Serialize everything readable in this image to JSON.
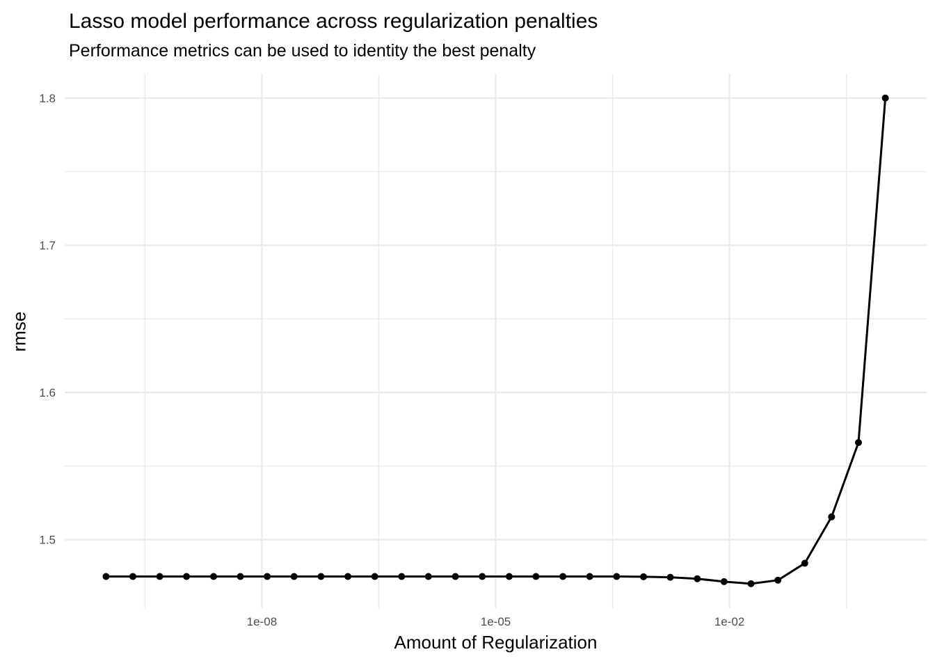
{
  "chart_data": {
    "type": "line",
    "title": "Lasso model performance across regularization penalties",
    "subtitle": "Performance metrics can be used to identity the best penalty",
    "xlabel": "Amount of Regularization",
    "ylabel": "rmse",
    "x_scale": "log10",
    "x": [
      1e-10,
      2.21e-10,
      4.89e-10,
      1.08e-09,
      2.4e-09,
      5.3e-09,
      1.17e-08,
      2.59e-08,
      5.74e-08,
      1.27e-07,
      2.81e-07,
      6.21e-07,
      1.37e-06,
      3.04e-06,
      6.72e-06,
      1.49e-05,
      3.29e-05,
      7.28e-05,
      0.000161,
      0.000356,
      0.000788,
      0.00174,
      0.00386,
      0.00853,
      0.0189,
      0.0418,
      0.0924,
      0.204,
      0.452,
      1.0
    ],
    "series": [
      {
        "name": "rmse",
        "color": "#000000",
        "values": [
          1.475,
          1.475,
          1.475,
          1.475,
          1.475,
          1.475,
          1.475,
          1.475,
          1.475,
          1.475,
          1.475,
          1.475,
          1.475,
          1.475,
          1.475,
          1.475,
          1.475,
          1.475,
          1.475,
          1.475,
          1.4748,
          1.4745,
          1.4735,
          1.4715,
          1.4701,
          1.4725,
          1.484,
          1.5155,
          1.566,
          1.8
        ]
      }
    ],
    "axes": {
      "x_ticks": [
        {
          "label": "1e-08",
          "value": 1e-08
        },
        {
          "label": "1e-05",
          "value": 1e-05
        },
        {
          "label": "1e-02",
          "value": 0.01
        }
      ],
      "x_minor_log10": [
        -9.5,
        -6.5,
        -3.5,
        -0.5
      ],
      "y_ticks": [
        {
          "label": "1.5",
          "value": 1.5
        },
        {
          "label": "1.6",
          "value": 1.6
        },
        {
          "label": "1.7",
          "value": 1.7
        },
        {
          "label": "1.8",
          "value": 1.8
        }
      ],
      "y_minor": [
        1.55,
        1.65,
        1.75
      ],
      "xlim_log10": [
        -10.53,
        0.53
      ],
      "ylim": [
        1.4535,
        1.8165
      ],
      "grid": true,
      "legend": "none"
    },
    "style": {
      "background": "#FFFFFF",
      "grid_color": "#EBEBEB",
      "tick_label_color": "#4D4D4D",
      "text_color": "#000000",
      "line_width": 3,
      "point_radius": 5,
      "grid_width_major": 2.4,
      "grid_width_minor": 1.4
    }
  }
}
